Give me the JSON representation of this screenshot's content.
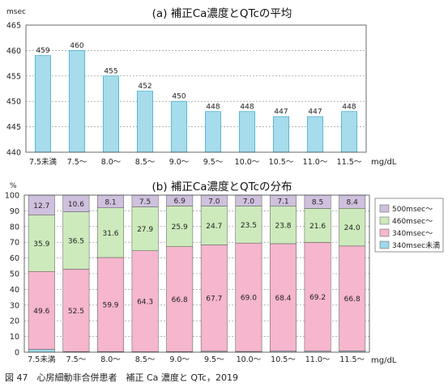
{
  "chart_data": [
    {
      "type": "bar",
      "title": "(a) 補正Ca濃度とQTcの平均",
      "ylabel": "msec",
      "xlabel": "mg/dL",
      "ylim": [
        440,
        465
      ],
      "yticks": [
        440,
        445,
        450,
        455,
        460,
        465
      ],
      "grid": true,
      "categories": [
        "7.5未満",
        "7.5〜",
        "8.0〜",
        "8.5〜",
        "9.0〜",
        "9.5〜",
        "10.0〜",
        "10.5〜",
        "11.0〜",
        "11.5〜"
      ],
      "values": [
        459,
        460,
        455,
        452,
        450,
        448,
        448,
        447,
        447,
        448
      ],
      "colors": {
        "bar": "#a6dcec",
        "bar_stroke": "#3aa8c8"
      }
    },
    {
      "type": "bar",
      "stacked": true,
      "title": "(b) 補正Ca濃度とQTcの分布",
      "ylabel": "%",
      "xlabel": "mg/dL",
      "ylim": [
        0,
        100
      ],
      "yticks": [
        0,
        10,
        20,
        30,
        40,
        50,
        60,
        70,
        80,
        90,
        100
      ],
      "grid": true,
      "legend_position": "right",
      "categories": [
        "7.5未満",
        "7.5〜",
        "8.0〜",
        "8.5〜",
        "9.0〜",
        "9.5〜",
        "10.0〜",
        "10.5〜",
        "11.0〜",
        "11.5〜"
      ],
      "series": [
        {
          "name": "340msec未満",
          "color": "#9fd8ea",
          "values": [
            1.8,
            0.4,
            0.4,
            0.3,
            0.4,
            0.6,
            0.5,
            0.7,
            0.7,
            0.8
          ],
          "labels": [
            "",
            "",
            "",
            "",
            "",
            "",
            "",
            "",
            "",
            ""
          ]
        },
        {
          "name": "340msec〜",
          "color": "#f6b6cd",
          "values": [
            49.6,
            52.5,
            59.9,
            64.3,
            66.8,
            67.7,
            69.0,
            68.4,
            69.2,
            66.8
          ],
          "labels": [
            "49.6",
            "52.5",
            "59.9",
            "64.3",
            "66.8",
            "67.7",
            "69.0",
            "68.4",
            "69.2",
            "66.8"
          ]
        },
        {
          "name": "460msec〜",
          "color": "#cdeabc",
          "values": [
            35.9,
            36.5,
            31.6,
            27.9,
            25.9,
            24.7,
            23.5,
            23.8,
            21.6,
            24.0
          ],
          "labels": [
            "35.9",
            "36.5",
            "31.6",
            "27.9",
            "25.9",
            "24.7",
            "23.5",
            "23.8",
            "21.6",
            "24.0"
          ]
        },
        {
          "name": "500msec〜",
          "color": "#cfc1dd",
          "values": [
            12.7,
            10.6,
            8.1,
            7.5,
            6.9,
            7.0,
            7.0,
            7.1,
            8.5,
            8.4
          ],
          "labels": [
            "12.7",
            "10.6",
            "8.1",
            "7.5",
            "6.9",
            "7.0",
            "7.0",
            "7.1",
            "8.5",
            "8.4"
          ]
        }
      ],
      "legend_order": [
        "500msec〜",
        "460msec〜",
        "340msec〜",
        "340msec未満"
      ]
    }
  ],
  "caption": "図 47　心房細動非合併患者　補正 Ca 濃度と QTc，2019"
}
